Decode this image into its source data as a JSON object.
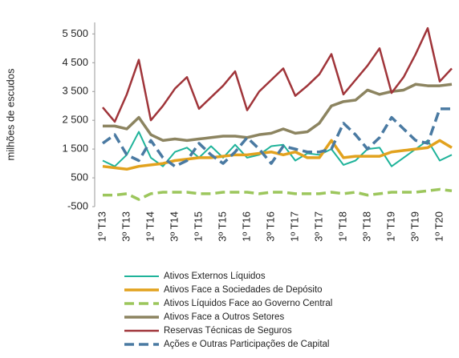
{
  "chart_data": {
    "type": "line",
    "y_label": "milhões de escudos",
    "categories": [
      "1º T13",
      null,
      "3º T13",
      null,
      "1º T14",
      null,
      "3º T14",
      null,
      "1º T15",
      null,
      "3º T15",
      null,
      "1º T16",
      null,
      "3º T16",
      null,
      "1º T17",
      null,
      "3º T17",
      null,
      "1º T18",
      null,
      "3º T18",
      null,
      "1º T19",
      null,
      "3º T19",
      null,
      "1º T20",
      null
    ],
    "ylim": [
      -500,
      5900
    ],
    "yticks": [
      -500,
      500,
      {
        "value": 1500,
        "label": "1 500"
      },
      {
        "value": 2500,
        "label": "2 500"
      },
      {
        "value": 3500,
        "label": "3 500"
      },
      {
        "value": 4500,
        "label": "4 500"
      },
      {
        "value": 5500,
        "label": "5 500"
      }
    ],
    "series": [
      {
        "name": "Ativos Externos Líquidos",
        "color": "#1fb39a",
        "width": 2,
        "dashed": false,
        "values": [
          1100,
          900,
          1300,
          2100,
          1200,
          900,
          1400,
          1550,
          1200,
          1600,
          1200,
          1650,
          1200,
          1300,
          1600,
          1650,
          1100,
          1350,
          1300,
          1500,
          950,
          1100,
          1500,
          1550,
          900,
          1200,
          1500,
          1800,
          1100,
          1300
        ]
      },
      {
        "name": "Ativos Face a Sociedades de Depósito",
        "color": "#e2a21e",
        "width": 3.5,
        "dashed": false,
        "values": [
          900,
          850,
          800,
          900,
          950,
          1000,
          1100,
          1150,
          1200,
          1200,
          1250,
          1300,
          1300,
          1350,
          1400,
          1300,
          1400,
          1200,
          1200,
          1800,
          1200,
          1250,
          1250,
          1250,
          1400,
          1450,
          1500,
          1550,
          1800,
          1550
        ]
      },
      {
        "name": "Ativos Líquidos Face ao Governo Central",
        "color": "#9cc65c",
        "width": 3.5,
        "dashed": true,
        "values": [
          -100,
          -100,
          -50,
          -250,
          -50,
          0,
          0,
          0,
          -50,
          -50,
          0,
          0,
          0,
          -50,
          0,
          0,
          -50,
          -50,
          -50,
          0,
          -50,
          0,
          -100,
          -50,
          0,
          0,
          0,
          50,
          100,
          50
        ]
      },
      {
        "name": "Ativos Face a Outros Setores",
        "color": "#8c8460",
        "width": 3.5,
        "dashed": false,
        "values": [
          2300,
          2300,
          2200,
          2600,
          2000,
          1800,
          1850,
          1800,
          1850,
          1900,
          1950,
          1950,
          1900,
          2000,
          2050,
          2200,
          2050,
          2100,
          2400,
          3000,
          3150,
          3200,
          3550,
          3400,
          3500,
          3550,
          3750,
          3700,
          3700,
          3750
        ]
      },
      {
        "name": "Reservas Técnicas de Seguros",
        "color": "#a0353a",
        "width": 2.5,
        "dashed": false,
        "values": [
          2950,
          2450,
          3400,
          4600,
          2500,
          3000,
          3600,
          4000,
          2900,
          3300,
          3700,
          4200,
          2850,
          3500,
          3900,
          4300,
          3350,
          3700,
          4100,
          4800,
          3400,
          3900,
          4400,
          5000,
          3450,
          4000,
          4800,
          5700,
          3850,
          4300
        ]
      },
      {
        "name": "Ações e Outras Participações de Capital",
        "color": "#4a7aa2",
        "width": 3.5,
        "dashed": true,
        "values": [
          1700,
          2000,
          1300,
          1100,
          1800,
          1200,
          900,
          1100,
          1700,
          1300,
          1000,
          1400,
          1900,
          1500,
          1000,
          1600,
          1500,
          1400,
          1400,
          1500,
          2400,
          2000,
          1500,
          1900,
          2600,
          2200,
          1800,
          1700,
          2900,
          2900
        ]
      }
    ]
  }
}
